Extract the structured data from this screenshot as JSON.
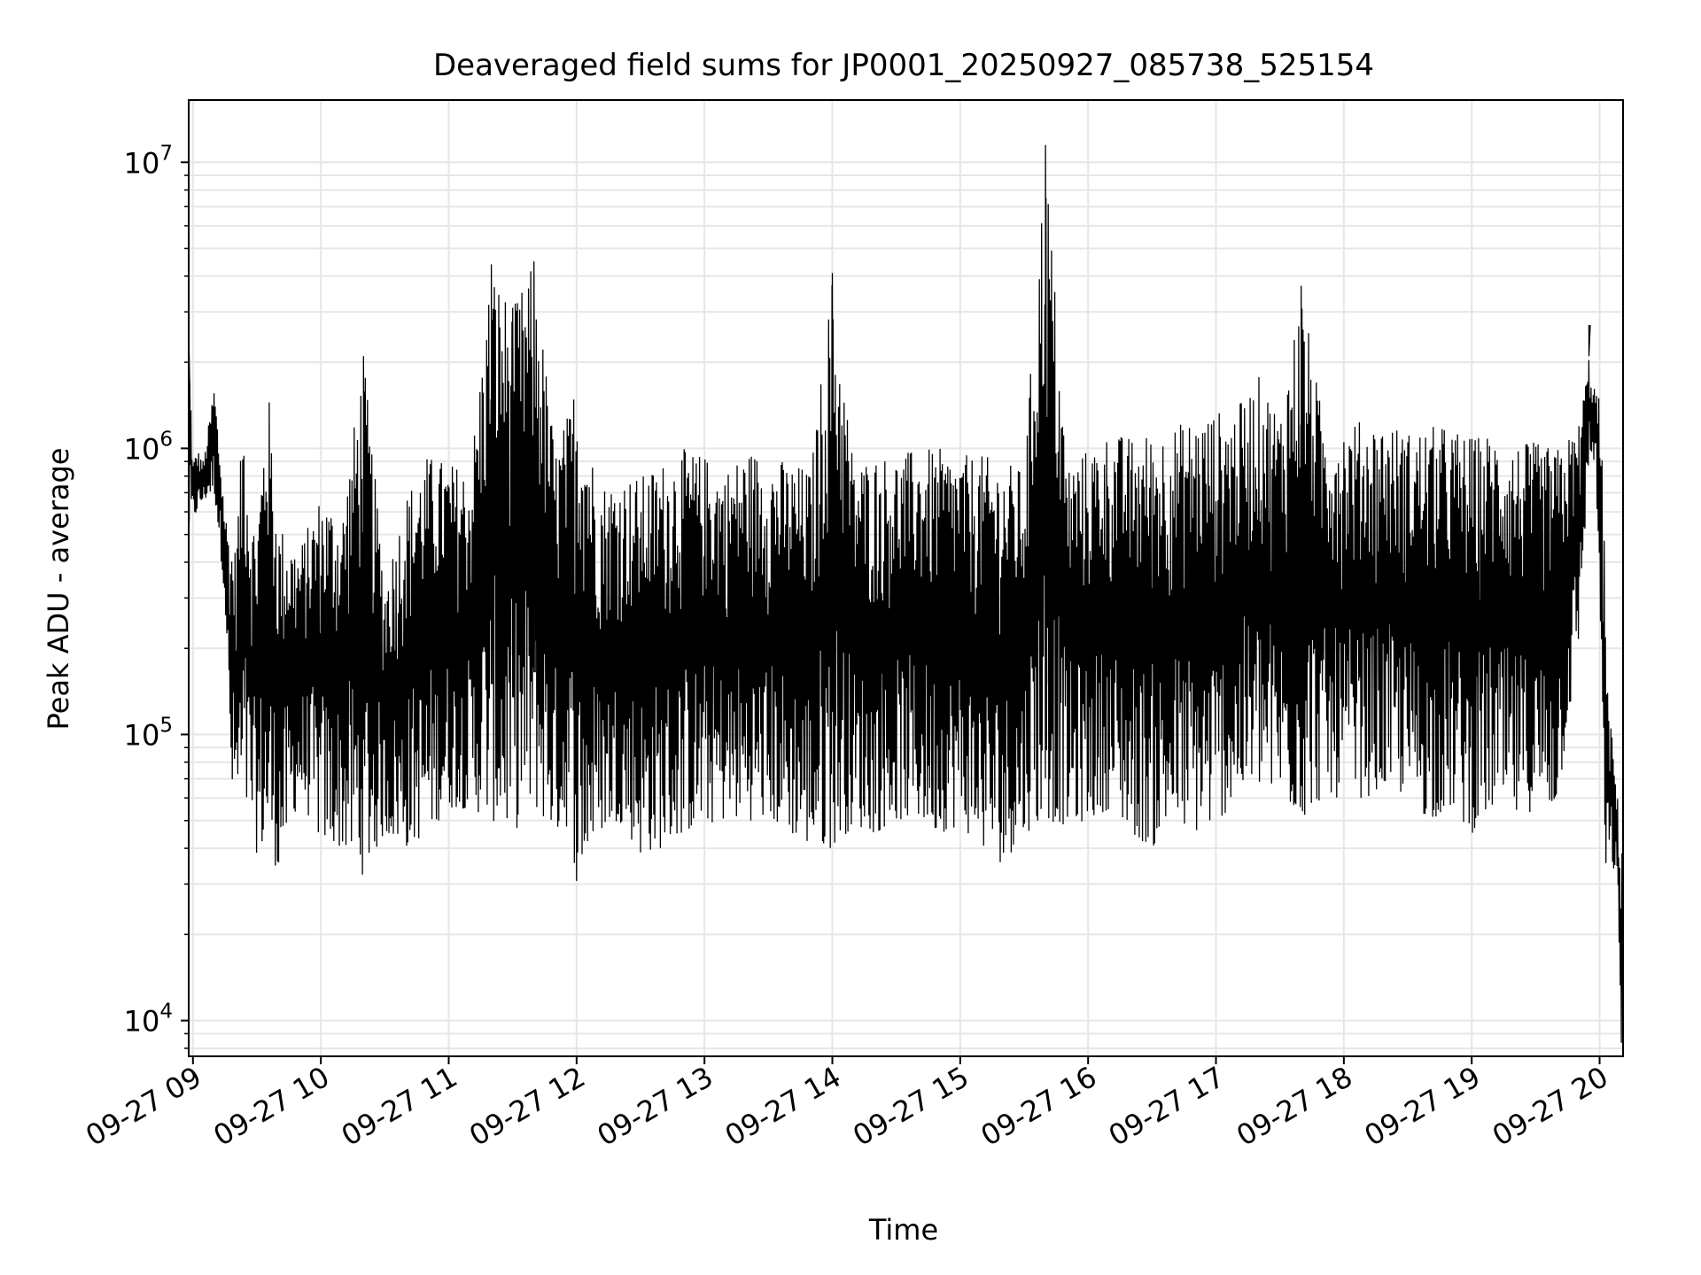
{
  "chart_data": {
    "type": "line",
    "title": "Deaveraged field sums for JP0001_20250927_085738_525154",
    "xlabel": "Time",
    "ylabel": "Peak ADU - average",
    "yscale": "log",
    "grid": true,
    "line_color": "#000000",
    "grid_color": "#e6e6e6",
    "xlim": [
      "2025-09-27 08:58",
      "2025-09-27 20:11"
    ],
    "ylim": [
      7500,
      16500000
    ],
    "x_ticks": [
      {
        "value": "2025-09-27 09:00",
        "label": "09-27 09"
      },
      {
        "value": "2025-09-27 10:00",
        "label": "09-27 10"
      },
      {
        "value": "2025-09-27 11:00",
        "label": "09-27 11"
      },
      {
        "value": "2025-09-27 12:00",
        "label": "09-27 12"
      },
      {
        "value": "2025-09-27 13:00",
        "label": "09-27 13"
      },
      {
        "value": "2025-09-27 14:00",
        "label": "09-27 14"
      },
      {
        "value": "2025-09-27 15:00",
        "label": "09-27 15"
      },
      {
        "value": "2025-09-27 16:00",
        "label": "09-27 16"
      },
      {
        "value": "2025-09-27 17:00",
        "label": "09-27 17"
      },
      {
        "value": "2025-09-27 18:00",
        "label": "09-27 18"
      },
      {
        "value": "2025-09-27 19:00",
        "label": "09-27 19"
      },
      {
        "value": "2025-09-27 20:00",
        "label": "09-27 20"
      }
    ],
    "y_ticks": [
      {
        "value": 10000,
        "base": "10",
        "exp": "4"
      },
      {
        "value": 100000,
        "base": "10",
        "exp": "5"
      },
      {
        "value": 1000000,
        "base": "10",
        "exp": "6"
      },
      {
        "value": 10000000,
        "base": "10",
        "exp": "7"
      }
    ],
    "series": [
      {
        "x": [
          "2025-09-27 08:58",
          "2025-09-27 09:00",
          "2025-09-27 09:02",
          "2025-09-27 09:05",
          "2025-09-27 09:10",
          "2025-09-27 09:15",
          "2025-09-27 09:18",
          "2025-09-27 09:20",
          "2025-09-27 09:24",
          "2025-09-27 09:27",
          "2025-09-27 09:30",
          "2025-09-27 09:35",
          "2025-09-27 09:40",
          "2025-09-27 09:45",
          "2025-09-27 09:50",
          "2025-09-27 10:00",
          "2025-09-27 10:10",
          "2025-09-27 10:20",
          "2025-09-27 10:30",
          "2025-09-27 10:40",
          "2025-09-27 10:50",
          "2025-09-27 11:00",
          "2025-09-27 11:10",
          "2025-09-27 11:20",
          "2025-09-27 11:30",
          "2025-09-27 11:40",
          "2025-09-27 11:50",
          "2025-09-27 11:57",
          "2025-09-27 12:00",
          "2025-09-27 12:10",
          "2025-09-27 12:20",
          "2025-09-27 12:30",
          "2025-09-27 12:40",
          "2025-09-27 12:50",
          "2025-09-27 13:00",
          "2025-09-27 13:10",
          "2025-09-27 13:20",
          "2025-09-27 13:30",
          "2025-09-27 13:40",
          "2025-09-27 13:50",
          "2025-09-27 14:00",
          "2025-09-27 14:10",
          "2025-09-27 14:20",
          "2025-09-27 14:30",
          "2025-09-27 14:40",
          "2025-09-27 14:50",
          "2025-09-27 15:00",
          "2025-09-27 15:10",
          "2025-09-27 15:20",
          "2025-09-27 15:30",
          "2025-09-27 15:40",
          "2025-09-27 15:50",
          "2025-09-27 16:00",
          "2025-09-27 16:10",
          "2025-09-27 16:20",
          "2025-09-27 16:30",
          "2025-09-27 16:40",
          "2025-09-27 16:50",
          "2025-09-27 17:00",
          "2025-09-27 17:10",
          "2025-09-27 17:20",
          "2025-09-27 17:30",
          "2025-09-27 17:40",
          "2025-09-27 17:50",
          "2025-09-27 18:00",
          "2025-09-27 18:10",
          "2025-09-27 18:20",
          "2025-09-27 18:30",
          "2025-09-27 18:40",
          "2025-09-27 18:50",
          "2025-09-27 19:00",
          "2025-09-27 19:10",
          "2025-09-27 19:20",
          "2025-09-27 19:30",
          "2025-09-27 19:40",
          "2025-09-27 19:50",
          "2025-09-27 19:55",
          "2025-09-27 19:58",
          "2025-09-27 20:00",
          "2025-09-27 20:02",
          "2025-09-27 20:04",
          "2025-09-27 20:06",
          "2025-09-27 20:08",
          "2025-09-27 20:10"
        ],
        "y_high": [
          2600000,
          900000,
          1000000,
          900000,
          1700000,
          600000,
          500000,
          450000,
          1500000,
          600000,
          550000,
          1800000,
          550000,
          500000,
          450000,
          700000,
          600000,
          2100000,
          350000,
          700000,
          950000,
          900000,
          850000,
          4400000,
          3100000,
          4500000,
          1000000,
          1400000,
          1900000,
          750000,
          800000,
          800000,
          900000,
          1000000,
          950000,
          850000,
          1000000,
          950000,
          900000,
          850000,
          4100000,
          900000,
          950000,
          950000,
          1000000,
          1000000,
          950000,
          950000,
          900000,
          850000,
          11500000,
          900000,
          1000000,
          1150000,
          1100000,
          1150000,
          1200000,
          1300000,
          1350000,
          1400000,
          1800000,
          1350000,
          3700000,
          1300000,
          1250000,
          1250000,
          1250000,
          1150000,
          1200000,
          1200000,
          1100000,
          1150000,
          1050000,
          1050000,
          1000000,
          1200000,
          2100000,
          1600000,
          1500000,
          650000,
          120000,
          100000,
          65000,
          45000
        ],
        "y_low": [
          480000,
          550000,
          600000,
          650000,
          700000,
          300000,
          60000,
          55000,
          50000,
          50000,
          38000,
          40000,
          33000,
          45000,
          60000,
          42000,
          40000,
          32000,
          45000,
          40000,
          45000,
          55000,
          55000,
          50000,
          45000,
          55000,
          45000,
          48000,
          30000,
          45000,
          50000,
          38000,
          40000,
          45000,
          48000,
          50000,
          50000,
          50000,
          45000,
          40000,
          40000,
          48000,
          45000,
          50000,
          50000,
          45000,
          48000,
          40000,
          35000,
          45000,
          50000,
          48000,
          50000,
          55000,
          45000,
          40000,
          48000,
          45000,
          48000,
          60000,
          65000,
          60000,
          50000,
          60000,
          60000,
          60000,
          65000,
          60000,
          50000,
          55000,
          45000,
          55000,
          50000,
          55000,
          55000,
          200000,
          900000,
          900000,
          300000,
          30000,
          35000,
          35000,
          30000,
          8000
        ]
      }
    ]
  }
}
